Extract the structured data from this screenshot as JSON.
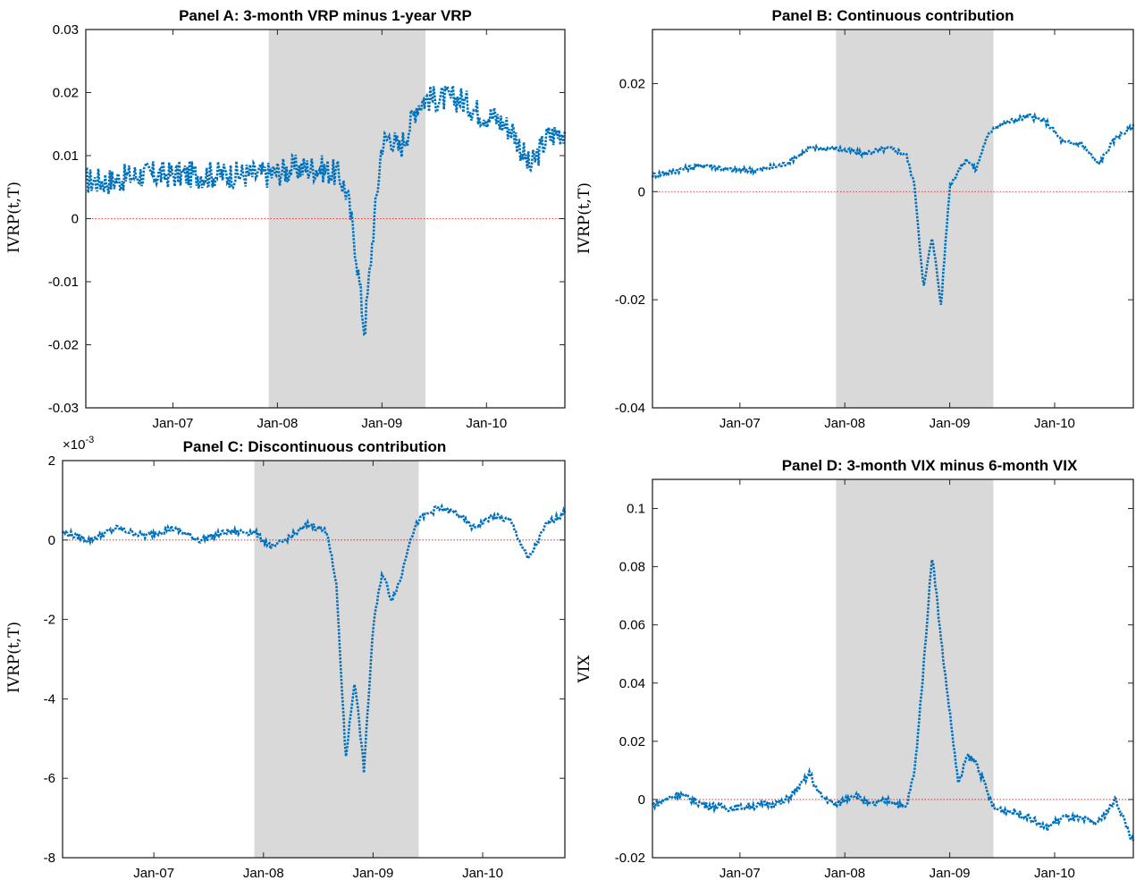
{
  "colors": {
    "series": "#0072BD",
    "reference": "#ff0000",
    "recession_shading": "#d9d9d9",
    "axes": "#262626"
  },
  "chart_data": [
    {
      "panel": "A",
      "type": "line",
      "title": "Panel A: 3-month VRP minus 1-year VRP",
      "xlabel": "",
      "ylabel": "IVRP(t,T)",
      "xlim": [
        "2006-03",
        "2010-10"
      ],
      "ylim": [
        -0.03,
        0.03
      ],
      "yticks": [
        -0.03,
        -0.02,
        -0.01,
        0,
        0.01,
        0.02,
        0.03
      ],
      "yticklabels": [
        "-0.03",
        "-0.02",
        "-0.01",
        "0",
        "0.01",
        "0.02",
        "0.03"
      ],
      "xticks": [
        "2007-01",
        "2008-01",
        "2009-01",
        "2010-01"
      ],
      "xticklabels": [
        "Jan-07",
        "Jan-08",
        "Jan-09",
        "Jan-10"
      ],
      "shaded_period": [
        "2007-12",
        "2009-06"
      ],
      "reference_line": 0,
      "line_style": "dotted",
      "noise": 0.0022,
      "series": [
        {
          "x": [
            "2006-03",
            "2006-06",
            "2006-09",
            "2006-12",
            "2007-03",
            "2007-06",
            "2007-09",
            "2007-12",
            "2008-03",
            "2008-06",
            "2008-08",
            "2008-09",
            "2008-10",
            "2008-11",
            "2008-12",
            "2009-01",
            "2009-02",
            "2009-03",
            "2009-04",
            "2009-05",
            "2009-06",
            "2009-08",
            "2009-10",
            "2009-12",
            "2010-02",
            "2010-04",
            "2010-06",
            "2010-08",
            "2010-10"
          ],
          "y": [
            0.006,
            0.006,
            0.007,
            0.007,
            0.007,
            0.007,
            0.007,
            0.007,
            0.008,
            0.008,
            0.007,
            0.004,
            -0.005,
            -0.018,
            -0.002,
            0.012,
            0.013,
            0.011,
            0.014,
            0.018,
            0.019,
            0.019,
            0.019,
            0.017,
            0.016,
            0.014,
            0.008,
            0.013,
            0.014
          ]
        }
      ]
    },
    {
      "panel": "B",
      "type": "line",
      "title": "Panel B: Continuous contribution",
      "xlabel": "",
      "ylabel": "IVRP(t,T)",
      "xlim": [
        "2006-03",
        "2010-10"
      ],
      "ylim": [
        -0.04,
        0.03
      ],
      "yticks": [
        -0.04,
        -0.02,
        0,
        0.02
      ],
      "yticklabels": [
        "-0.04",
        "-0.02",
        "0",
        "0.02"
      ],
      "xticks": [
        "2007-01",
        "2008-01",
        "2009-01",
        "2010-01"
      ],
      "xticklabels": [
        "Jan-07",
        "Jan-08",
        "Jan-09",
        "Jan-10"
      ],
      "shaded_period": [
        "2007-12",
        "2009-06"
      ],
      "reference_line": 0,
      "line_style": "dotted",
      "noise": 0.0005,
      "series": [
        {
          "x": [
            "2006-03",
            "2006-06",
            "2006-09",
            "2006-12",
            "2007-03",
            "2007-06",
            "2007-09",
            "2007-12",
            "2008-03",
            "2008-06",
            "2008-08",
            "2008-09",
            "2008-10",
            "2008-11",
            "2008-12",
            "2009-01",
            "2009-02",
            "2009-03",
            "2009-04",
            "2009-05",
            "2009-06",
            "2009-08",
            "2009-10",
            "2009-12",
            "2010-02",
            "2010-04",
            "2010-06",
            "2010-08",
            "2010-10"
          ],
          "y": [
            0.003,
            0.004,
            0.005,
            0.004,
            0.004,
            0.005,
            0.008,
            0.008,
            0.007,
            0.008,
            0.007,
            0.001,
            -0.018,
            -0.008,
            -0.021,
            0.001,
            0.004,
            0.006,
            0.004,
            0.009,
            0.012,
            0.013,
            0.014,
            0.013,
            0.009,
            0.009,
            0.005,
            0.01,
            0.012
          ]
        }
      ]
    },
    {
      "panel": "C",
      "type": "line",
      "title": "Panel C: Discontinuous contribution",
      "xlabel": "",
      "ylabel": "IVRP(t,T)",
      "y_exponent_label": "×10",
      "y_exponent": "-3",
      "xlim": [
        "2006-03",
        "2010-10"
      ],
      "ylim": [
        -8,
        2
      ],
      "yticks": [
        -8,
        -6,
        -4,
        -2,
        0,
        2
      ],
      "yticklabels": [
        "-8",
        "-6",
        "-4",
        "-2",
        "0",
        "2"
      ],
      "xticks": [
        "2007-01",
        "2008-01",
        "2009-01",
        "2010-01"
      ],
      "xticklabels": [
        "Jan-07",
        "Jan-08",
        "Jan-09",
        "Jan-10"
      ],
      "shaded_period": [
        "2007-12",
        "2009-06"
      ],
      "reference_line": 0,
      "line_style": "dotted",
      "noise": 0.08,
      "series": [
        {
          "x": [
            "2006-03",
            "2006-06",
            "2006-09",
            "2006-12",
            "2007-03",
            "2007-06",
            "2007-09",
            "2007-12",
            "2008-02",
            "2008-04",
            "2008-06",
            "2008-08",
            "2008-09",
            "2008-10",
            "2008-11",
            "2008-12",
            "2009-01",
            "2009-02",
            "2009-03",
            "2009-04",
            "2009-05",
            "2009-06",
            "2009-08",
            "2009-10",
            "2009-12",
            "2010-02",
            "2010-04",
            "2010-06",
            "2010-08",
            "2010-10"
          ],
          "y": [
            0.2,
            0.0,
            0.3,
            0.1,
            0.3,
            0.0,
            0.2,
            0.2,
            -0.2,
            0.1,
            0.4,
            0.2,
            -1.2,
            -5.5,
            -3.5,
            -5.8,
            -2.2,
            -0.8,
            -1.5,
            -1.0,
            0.0,
            0.5,
            0.8,
            0.7,
            0.3,
            0.6,
            0.5,
            -0.5,
            0.4,
            0.7
          ]
        }
      ]
    },
    {
      "panel": "D",
      "type": "line",
      "title": "Panel D: 3-month VIX minus 6-month VIX",
      "xlabel": "",
      "ylabel": "VIX",
      "xlim": [
        "2006-03",
        "2010-10"
      ],
      "ylim": [
        -0.02,
        0.11
      ],
      "yticks": [
        -0.02,
        0,
        0.02,
        0.04,
        0.06,
        0.08,
        0.1
      ],
      "yticklabels": [
        "-0.02",
        "0",
        "0.02",
        "0.04",
        "0.06",
        "0.08",
        "0.1"
      ],
      "xticks": [
        "2007-01",
        "2008-01",
        "2009-01",
        "2010-01"
      ],
      "xticklabels": [
        "Jan-07",
        "Jan-08",
        "Jan-09",
        "Jan-10"
      ],
      "shaded_period": [
        "2007-12",
        "2009-06"
      ],
      "reference_line": 0,
      "line_style": "dotted",
      "noise": 0.0012,
      "series": [
        {
          "x": [
            "2006-03",
            "2006-06",
            "2006-09",
            "2006-12",
            "2007-03",
            "2007-06",
            "2007-08",
            "2007-09",
            "2007-10",
            "2007-12",
            "2008-02",
            "2008-04",
            "2008-06",
            "2008-08",
            "2008-09",
            "2008-10",
            "2008-11",
            "2008-12",
            "2009-01",
            "2009-02",
            "2009-03",
            "2009-04",
            "2009-05",
            "2009-06",
            "2009-08",
            "2009-10",
            "2009-12",
            "2010-02",
            "2010-04",
            "2010-06",
            "2010-08",
            "2010-10"
          ],
          "y": [
            -0.002,
            0.002,
            -0.002,
            -0.003,
            -0.002,
            -0.001,
            0.005,
            0.009,
            0.002,
            -0.002,
            0.002,
            -0.002,
            0.0,
            -0.003,
            0.01,
            0.045,
            0.085,
            0.055,
            0.03,
            0.005,
            0.015,
            0.013,
            0.005,
            -0.003,
            -0.004,
            -0.006,
            -0.01,
            -0.006,
            -0.007,
            -0.008,
            0.0,
            -0.015
          ]
        }
      ]
    }
  ]
}
